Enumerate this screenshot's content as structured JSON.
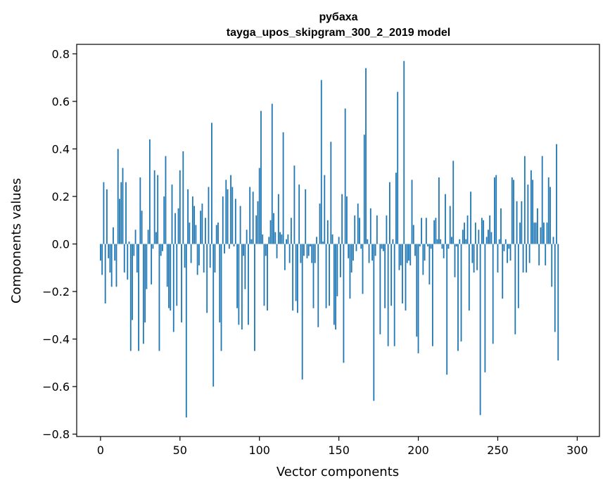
{
  "chart_data": {
    "type": "bar",
    "title": "рубаха",
    "subtitle": "tayga_upos_skipgram_300_2_2019 model",
    "xlabel": "Vector components",
    "ylabel": "Components values",
    "xlim": [
      -15,
      314
    ],
    "ylim": [
      -0.81,
      0.84
    ],
    "xticks": [
      0,
      50,
      100,
      150,
      200,
      250,
      300
    ],
    "yticks": [
      -0.8,
      -0.6,
      -0.4,
      -0.2,
      0.0,
      0.2,
      0.4,
      0.6,
      0.8
    ],
    "xtick_labels": [
      "0",
      "50",
      "100",
      "150",
      "200",
      "250",
      "300"
    ],
    "ytick_labels": [
      "−0.8",
      "−0.6",
      "−0.4",
      "−0.2",
      "0.0",
      "0.2",
      "0.4",
      "0.6",
      "0.8"
    ],
    "bar_color": "#1f77b4",
    "grid": false,
    "values": [
      -0.07,
      -0.13,
      0.26,
      -0.25,
      0.23,
      -0.06,
      -0.12,
      -0.18,
      0.07,
      -0.07,
      -0.18,
      0.4,
      0.19,
      0.26,
      0.32,
      -0.12,
      0.26,
      -0.15,
      0.01,
      -0.45,
      -0.32,
      -0.05,
      0.06,
      -0.12,
      -0.45,
      0.28,
      0.14,
      -0.42,
      -0.33,
      -0.19,
      0.06,
      0.44,
      -0.17,
      -0.02,
      0.31,
      0.05,
      0.29,
      -0.45,
      -0.05,
      -0.03,
      0.2,
      0.37,
      -0.18,
      -0.27,
      -0.28,
      0.25,
      -0.37,
      0.13,
      -0.26,
      0.15,
      0.31,
      -0.33,
      0.39,
      -0.1,
      -0.73,
      0.23,
      0.09,
      -0.08,
      0.2,
      0.16,
      0.08,
      -0.13,
      -0.09,
      0.14,
      0.17,
      -0.12,
      0.11,
      -0.29,
      0.24,
      -0.1,
      0.51,
      -0.6,
      -0.12,
      0.08,
      0.09,
      -0.33,
      -0.45,
      0.2,
      -0.04,
      0.27,
      0.23,
      -0.02,
      0.29,
      0.24,
      -0.01,
      0.19,
      -0.27,
      -0.34,
      0.16,
      -0.36,
      -0.05,
      -0.19,
      0.06,
      -0.34,
      0.24,
      0.02,
      0.22,
      -0.45,
      0.12,
      0.18,
      0.32,
      0.56,
      0.04,
      -0.26,
      -0.05,
      -0.28,
      0.03,
      0.1,
      0.59,
      0.13,
      0.05,
      -0.06,
      0.21,
      0.05,
      0.04,
      0.47,
      -0.11,
      0.02,
      0.04,
      -0.08,
      0.11,
      -0.28,
      0.33,
      -0.24,
      -0.29,
      0.25,
      -0.08,
      -0.57,
      -0.05,
      0.23,
      -0.06,
      -0.05,
      -0.01,
      -0.08,
      -0.27,
      -0.08,
      0.03,
      -0.35,
      0.17,
      0.69,
      0.01,
      0.29,
      -0.27,
      0.1,
      -0.26,
      0.43,
      0.04,
      -0.34,
      -0.36,
      -0.22,
      0.03,
      -0.14,
      0.21,
      -0.5,
      0.57,
      0.2,
      -0.06,
      -0.23,
      -0.12,
      -0.07,
      0.12,
      -0.03,
      0.17,
      0.11,
      -0.02,
      -0.21,
      0.46,
      0.74,
      0.02,
      -0.08,
      0.15,
      -0.07,
      -0.66,
      -0.05,
      0.12,
      0.0,
      -0.38,
      -0.02,
      -0.03,
      -0.27,
      0.12,
      -0.43,
      0.26,
      -0.26,
      0.02,
      -0.43,
      0.3,
      0.64,
      -0.11,
      -0.09,
      -0.25,
      0.77,
      -0.28,
      -0.08,
      -0.07,
      -0.09,
      0.27,
      0.08,
      -0.05,
      -0.39,
      -0.46,
      -0.01,
      0.11,
      -0.13,
      -0.07,
      0.11,
      -0.01,
      -0.17,
      -0.02,
      -0.43,
      0.1,
      0.11,
      0.02,
      0.28,
      0.02,
      -0.02,
      -0.06,
      0.21,
      -0.55,
      -0.02,
      0.16,
      0.03,
      0.35,
      -0.14,
      -0.01,
      -0.45,
      0.02,
      -0.41,
      0.06,
      0.09,
      0.02,
      0.12,
      -0.28,
      0.22,
      -0.08,
      -0.12,
      0.09,
      -0.11,
      0.06,
      -0.72,
      0.11,
      0.1,
      -0.54,
      0.03,
      0.06,
      0.12,
      0.05,
      -0.42,
      0.28,
      0.29,
      -0.12,
      0.02,
      0.15,
      -0.23,
      -0.03,
      0.02,
      -0.08,
      -0.02,
      -0.07,
      0.28,
      0.27,
      -0.38,
      0.18,
      -0.27,
      0.09,
      0.18,
      -0.12,
      0.37,
      -0.12,
      0.25,
      -0.08,
      0.31,
      0.27,
      0.09,
      0.09,
      0.15,
      -0.09,
      0.07,
      0.37,
      0.09,
      -0.09,
      0.09,
      0.28,
      0.24,
      -0.18,
      0.03,
      -0.37,
      0.42,
      -0.49
    ]
  }
}
